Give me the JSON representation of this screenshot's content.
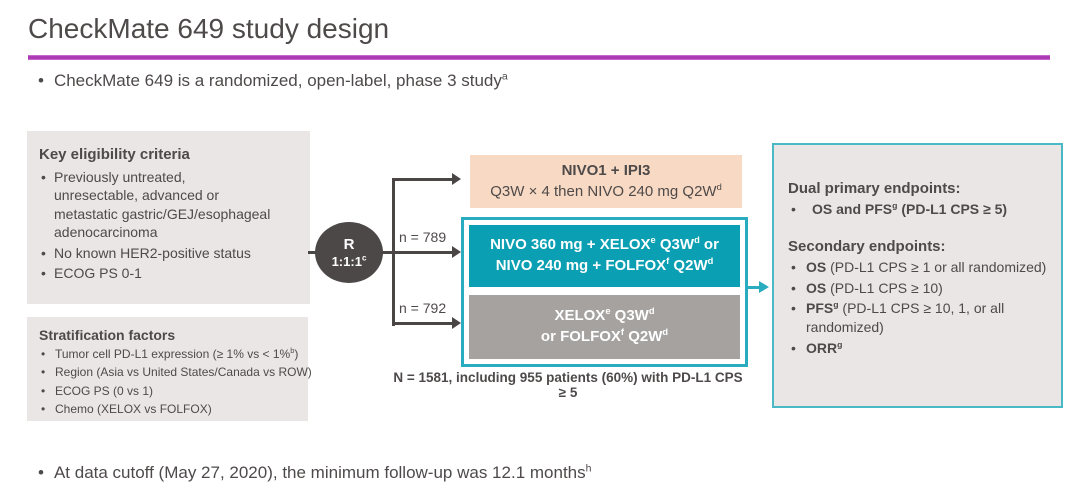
{
  "colors": {
    "accent_rule": "#ad38b5",
    "teal_fill": "#0a9fb2",
    "teal_border": "#2aacc0",
    "endpoints_border": "#4ab9c6",
    "peach_fill": "#f8d9c3",
    "gray_fill": "#a5a2a0",
    "panel_bg": "#eae6e5",
    "circle_bg": "#4c4848",
    "text": "#4e4a4a",
    "arrow": "#4a4646"
  },
  "header": {
    "title": "CheckMate 649 study design"
  },
  "intro": {
    "parts": [
      {
        "t": "CheckMate 649 is a randomized, open-label, phase 3 study"
      },
      {
        "s": "a"
      }
    ]
  },
  "eligibility": {
    "header": "Key eligibility criteria",
    "items": [
      "Previously untreated, unresectable, advanced or metastatic gastric/GEJ/esophageal adenocarcinoma",
      "No known HER2-positive status",
      "ECOG PS 0-1"
    ]
  },
  "stratification": {
    "header": "Stratification factors",
    "items": [
      [
        {
          "t": "Tumor cell PD-L1 expression (≥ 1% vs < 1%"
        },
        {
          "s": "b"
        },
        {
          "t": ")"
        }
      ],
      [
        {
          "t": "Region (Asia vs United States/Canada vs ROW)"
        }
      ],
      [
        {
          "t": "ECOG PS (0 vs 1)"
        }
      ],
      [
        {
          "t": "Chemo (XELOX vs FOLFOX)"
        }
      ]
    ]
  },
  "randomization": {
    "label": "R",
    "ratio": [
      {
        "t": "1:1:1"
      },
      {
        "s": "c"
      }
    ],
    "n_middle": "n = 789",
    "n_bottom": "n = 792"
  },
  "arms": {
    "nivo_ipi": {
      "line1": "NIVO1 + IPI3",
      "line2": [
        {
          "t": "Q3W × 4 then NIVO 240 mg Q2W"
        },
        {
          "s": "d"
        }
      ]
    },
    "nivo_chemo": {
      "line1": [
        {
          "t": "NIVO 360 mg + XELOX"
        },
        {
          "s": "e"
        },
        {
          "t": " Q3W"
        },
        {
          "s": "d"
        },
        {
          "t": " or"
        }
      ],
      "line2": [
        {
          "t": "NIVO 240 mg + FOLFOX"
        },
        {
          "s": "f"
        },
        {
          "t": " Q2W"
        },
        {
          "s": "d"
        }
      ]
    },
    "chemo": {
      "line1": [
        {
          "t": "XELOX"
        },
        {
          "s": "e"
        },
        {
          "t": " Q3W"
        },
        {
          "s": "d"
        }
      ],
      "line2": [
        {
          "t": "or FOLFOX"
        },
        {
          "s": "f"
        },
        {
          "t": " Q2W"
        },
        {
          "s": "d"
        }
      ]
    }
  },
  "enrollment_note": "N = 1581, including 955 patients (60%) with PD-L1 CPS ≥ 5",
  "endpoints": {
    "primary_header": "Dual primary endpoints:",
    "primary_items": [
      [
        {
          "t": "OS and PFS",
          "b": true
        },
        {
          "s": "g",
          "b": true
        },
        {
          "t": " (PD-L1 CPS ≥ 5)",
          "b": true
        }
      ]
    ],
    "secondary_header": "Secondary endpoints:",
    "secondary_items": [
      [
        {
          "t": "OS",
          "b": true
        },
        {
          "t": " (PD-L1 CPS ≥ 1 or all randomized)"
        }
      ],
      [
        {
          "t": "OS",
          "b": true
        },
        {
          "t": " (PD-L1 CPS ≥ 10)"
        }
      ],
      [
        {
          "t": "PFS",
          "b": true
        },
        {
          "s": "g",
          "b": true
        },
        {
          "t": " (PD-L1 CPS ≥ 10, 1, or all randomized)"
        }
      ],
      [
        {
          "t": "ORR",
          "b": true
        },
        {
          "s": "g",
          "b": true
        }
      ]
    ]
  },
  "footer": {
    "parts": [
      {
        "t": "At data cutoff (May 27, 2020), the minimum follow-up was 12.1 months"
      },
      {
        "s": "h"
      }
    ]
  }
}
